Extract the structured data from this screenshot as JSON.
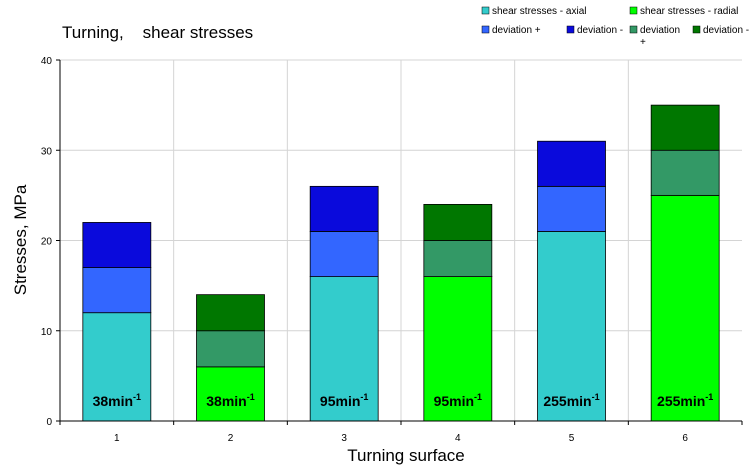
{
  "chart_data": {
    "type": "bar",
    "stacked": true,
    "title": "Turning,    shear stresses",
    "xlabel": "Turning surface",
    "ylabel": "Stresses, MPa",
    "categories": [
      "1",
      "2",
      "3",
      "4",
      "5",
      "6"
    ],
    "ylim": [
      0,
      40
    ],
    "yticks": [
      0,
      10,
      20,
      30,
      40
    ],
    "grid": true,
    "legend_position": "top-right",
    "series": [
      {
        "name": "shear stresses - axial",
        "color": "#33CCCC",
        "values": [
          12,
          null,
          16,
          null,
          21,
          null
        ]
      },
      {
        "name": "deviation +",
        "color": "#3366FF",
        "values": [
          5,
          null,
          5,
          null,
          5,
          null
        ]
      },
      {
        "name": "deviation -",
        "color": "#0A0ADC",
        "values": [
          5,
          null,
          5,
          null,
          5,
          null
        ]
      },
      {
        "name": "shear stresses - radial",
        "color": "#00FF00",
        "values": [
          null,
          6,
          null,
          16,
          null,
          25
        ]
      },
      {
        "name": "deviation +",
        "color": "#339966",
        "values": [
          null,
          4,
          null,
          4,
          null,
          5
        ]
      },
      {
        "name": "deviation -",
        "color": "#007700",
        "values": [
          null,
          4,
          null,
          4,
          null,
          5
        ]
      }
    ],
    "annotations": [
      {
        "category": "1",
        "base": "38min",
        "sup": "-1"
      },
      {
        "category": "2",
        "base": "38min",
        "sup": "-1"
      },
      {
        "category": "3",
        "base": "95min",
        "sup": "-1"
      },
      {
        "category": "4",
        "base": "95min",
        "sup": "-1"
      },
      {
        "category": "5",
        "base": "255min",
        "sup": "-1"
      },
      {
        "category": "6",
        "base": "255min",
        "sup": "-1"
      }
    ]
  },
  "legend": {
    "rows": [
      [
        {
          "label": "shear stresses - axial",
          "color": "#33CCCC"
        },
        {
          "label": "shear stresses - radial",
          "color": "#00FF00"
        }
      ],
      [
        {
          "label": "deviation +",
          "color": "#3366FF"
        },
        {
          "label": "deviation -",
          "color": "#0A0ADC"
        },
        {
          "label": "deviation",
          "label2": "+",
          "color": "#339966"
        },
        {
          "label": "deviation -",
          "color": "#007700"
        }
      ]
    ]
  }
}
